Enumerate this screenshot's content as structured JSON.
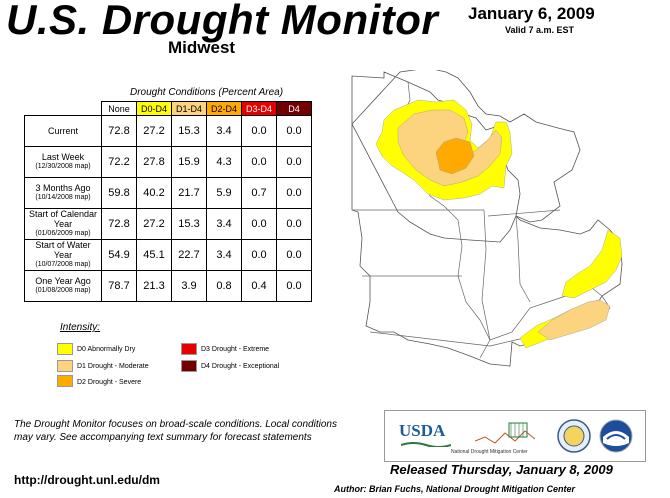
{
  "header": {
    "title": "U.S. Drought Monitor",
    "region": "Midwest",
    "date": "January 6, 2009",
    "valid": "Valid 7 a.m. EST"
  },
  "table": {
    "caption": "Drought Conditions (Percent Area)",
    "columns": [
      "None",
      "D0-D4",
      "D1-D4",
      "D2-D4",
      "D3-D4",
      "D4"
    ],
    "column_colors": [
      "#ffffff",
      "#ffff00",
      "#fcd37f",
      "#ffaa00",
      "#e60000",
      "#730000"
    ],
    "rows": [
      {
        "label": "Current",
        "sub": "",
        "values": [
          "72.8",
          "27.2",
          "15.3",
          "3.4",
          "0.0",
          "0.0"
        ]
      },
      {
        "label": "Last Week",
        "sub": "(12/30/2008 map)",
        "values": [
          "72.2",
          "27.8",
          "15.9",
          "4.3",
          "0.0",
          "0.0"
        ]
      },
      {
        "label": "3 Months Ago",
        "sub": "(10/14/2008 map)",
        "values": [
          "59.8",
          "40.2",
          "21.7",
          "5.9",
          "0.7",
          "0.0"
        ]
      },
      {
        "label": "Start of Calendar Year",
        "sub": "(01/06/2009 map)",
        "values": [
          "72.8",
          "27.2",
          "15.3",
          "3.4",
          "0.0",
          "0.0"
        ]
      },
      {
        "label": "Start of Water Year",
        "sub": "(10/07/2008 map)",
        "values": [
          "54.9",
          "45.1",
          "22.7",
          "3.4",
          "0.0",
          "0.0"
        ]
      },
      {
        "label": "One Year Ago",
        "sub": "(01/08/2008 map)",
        "values": [
          "78.7",
          "21.3",
          "3.9",
          "0.8",
          "0.4",
          "0.0"
        ]
      }
    ]
  },
  "legend": {
    "title": "Intensity:",
    "items": [
      {
        "label": "D0 Abnormally Dry",
        "color": "#ffff00"
      },
      {
        "label": "D1 Drought - Moderate",
        "color": "#fcd37f"
      },
      {
        "label": "D2 Drought - Severe",
        "color": "#ffaa00"
      },
      {
        "label": "D3 Drought - Extreme",
        "color": "#e60000"
      },
      {
        "label": "D4 Drought - Exceptional",
        "color": "#730000"
      }
    ]
  },
  "footer": {
    "note": "The Drought Monitor focuses on broad-scale conditions. Local conditions may vary. See accompanying text summary for forecast statements",
    "url": "http://drought.unl.edu/dm",
    "released": "Released Thursday, January 8, 2009",
    "author": "Author: Brian Fuchs, National Drought Mitigation Center"
  },
  "logos": {
    "usda": "USDA",
    "ndmc": "National Drought Mitigation Center"
  }
}
